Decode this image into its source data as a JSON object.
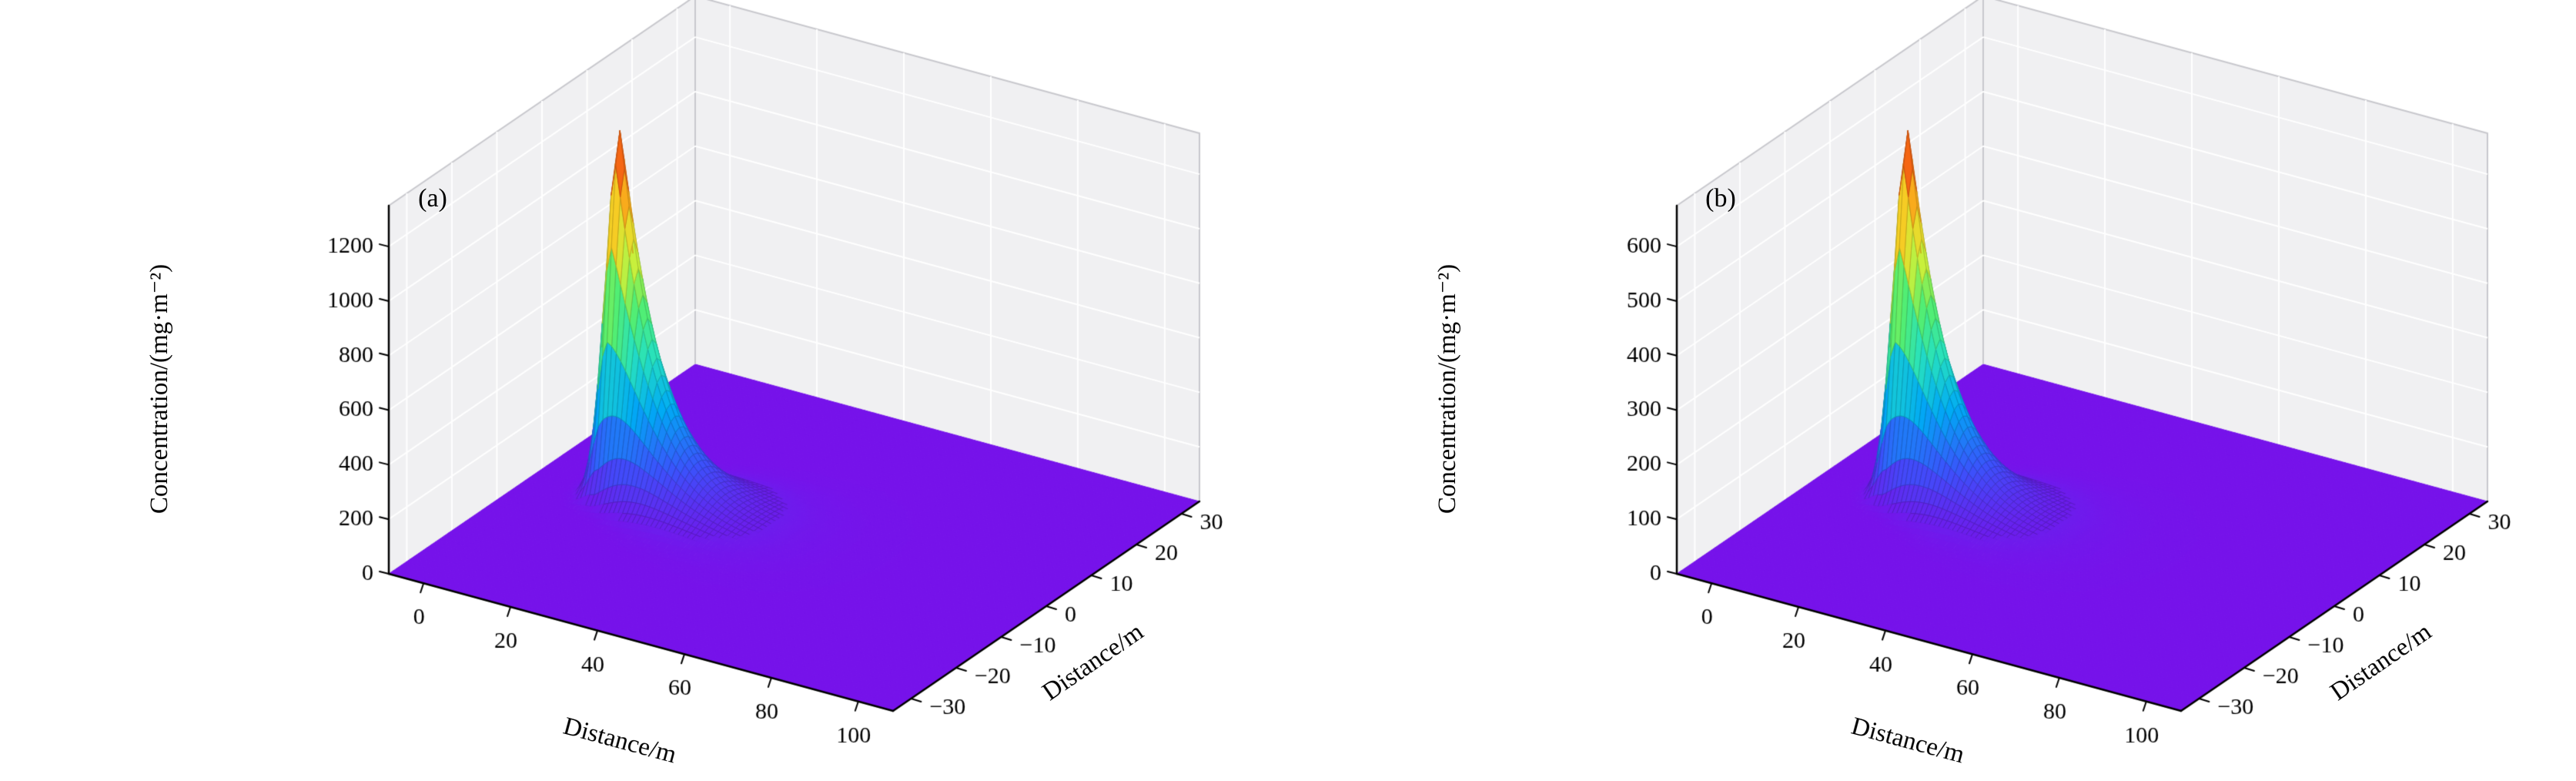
{
  "style": {
    "background": "#ffffff",
    "pane_color": "#f0f0f2",
    "pane_edge_color": "#c8c8cd",
    "grid_color": "#ffffff",
    "axis_color": "#000000",
    "tick_label_color": "#000000",
    "colormap": "rainbow",
    "colormap_stops": [
      [
        0.0,
        "#7612ea"
      ],
      [
        0.13,
        "#3b52fb"
      ],
      [
        0.27,
        "#00aaf5"
      ],
      [
        0.4,
        "#26e1c0"
      ],
      [
        0.53,
        "#55ef6e"
      ],
      [
        0.65,
        "#c8f03c"
      ],
      [
        0.76,
        "#f5d225"
      ],
      [
        0.86,
        "#fc8c14"
      ],
      [
        1.0,
        "#e81e10"
      ]
    ]
  },
  "chart_data": [
    {
      "type": "surface",
      "panel_label": "(a)",
      "xlabel": "Distance/m",
      "ylabel": "Distance/m",
      "zlabel": "Concentration/(mg·m⁻²)",
      "x_ticks": [
        0,
        20,
        40,
        60,
        80,
        100
      ],
      "y_ticks": [
        -30,
        -20,
        -10,
        0,
        10,
        20,
        30
      ],
      "z_ticks": [
        0,
        200,
        400,
        600,
        800,
        1000,
        1200
      ],
      "x_pane_range": [
        -8,
        108
      ],
      "y_pane_range": [
        -34,
        34
      ],
      "z_axis_range": [
        0,
        1350
      ],
      "grid": true,
      "background_value": 0,
      "surface_model": {
        "description": "Sharp Gaussian plume peak on a flat zero background",
        "peak_x": 10,
        "peak_y": 0,
        "peak_value": 1320,
        "upwind_sigma_x": 2.5,
        "downwind_decay_length": 9,
        "sigma_y_at_peak": 2.2,
        "sigma_y_growth_per_m": 0.13
      },
      "centerline_x": [
        0,
        10,
        20,
        30,
        40,
        60,
        80,
        100
      ],
      "centerline_concentration": [
        0,
        1320,
        434,
        143,
        47,
        5,
        1,
        0
      ]
    },
    {
      "type": "surface",
      "panel_label": "(b)",
      "xlabel": "Distance/m",
      "ylabel": "Distance/m",
      "zlabel": "Concentration/(mg·m⁻²)",
      "x_ticks": [
        0,
        20,
        40,
        60,
        80,
        100
      ],
      "y_ticks": [
        -30,
        -20,
        -10,
        0,
        10,
        20,
        30
      ],
      "z_ticks": [
        0,
        100,
        200,
        300,
        400,
        500,
        600
      ],
      "x_pane_range": [
        -8,
        108
      ],
      "y_pane_range": [
        -34,
        34
      ],
      "z_axis_range": [
        0,
        675
      ],
      "grid": true,
      "background_value": 0,
      "surface_model": {
        "description": "Sharp Gaussian plume peak on a flat zero background",
        "peak_x": 10,
        "peak_y": 0,
        "peak_value": 660,
        "upwind_sigma_x": 2.5,
        "downwind_decay_length": 9,
        "sigma_y_at_peak": 2.2,
        "sigma_y_growth_per_m": 0.13
      },
      "centerline_x": [
        0,
        10,
        20,
        30,
        40,
        60,
        80,
        100
      ],
      "centerline_concentration": [
        0,
        660,
        217,
        71,
        24,
        3,
        0,
        0
      ]
    }
  ]
}
